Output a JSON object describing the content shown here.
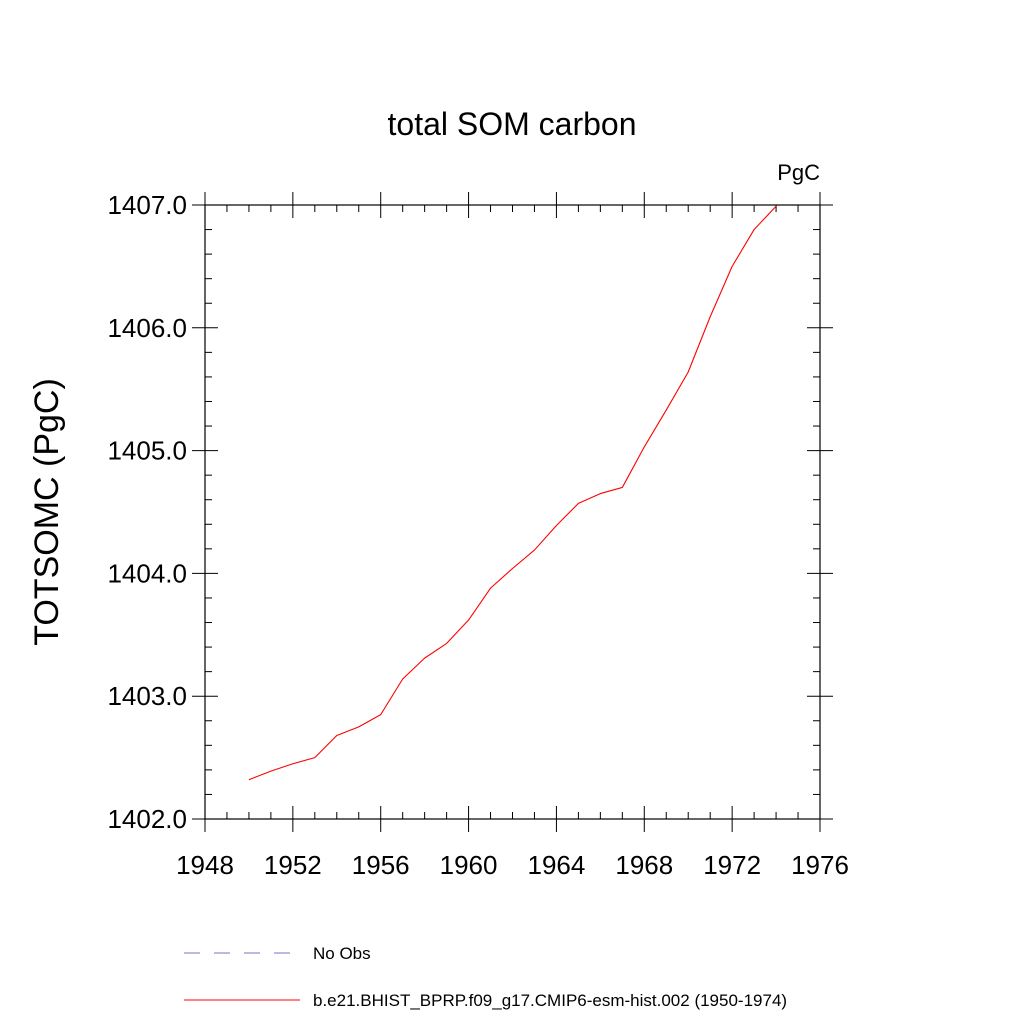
{
  "chart_data": {
    "type": "line",
    "title": "total SOM carbon",
    "units_label": "PgC",
    "xlabel": "",
    "ylabel": "TOTSOMC  (PgC)",
    "xlim": [
      1948,
      1976
    ],
    "ylim": [
      1402.0,
      1407.0
    ],
    "xticks": [
      1948,
      1952,
      1956,
      1960,
      1964,
      1968,
      1972,
      1976
    ],
    "xtick_labels": [
      "1948",
      "1952",
      "1956",
      "1960",
      "1964",
      "1968",
      "1972",
      "1976"
    ],
    "yticks": [
      1402.0,
      1403.0,
      1404.0,
      1405.0,
      1406.0,
      1407.0
    ],
    "ytick_labels": [
      "1402.0",
      "1403.0",
      "1404.0",
      "1405.0",
      "1406.0",
      "1407.0"
    ],
    "x_minor_step": 1,
    "y_minor_step": 0.2,
    "series": [
      {
        "name": "b.e21.BHIST_BPRP.f09_g17.CMIP6-esm-hist.002 (1950-1974)",
        "color": "#ff0000",
        "style": "solid",
        "x": [
          1950,
          1951,
          1952,
          1953,
          1954,
          1955,
          1956,
          1957,
          1958,
          1959,
          1960,
          1961,
          1962,
          1963,
          1964,
          1965,
          1966,
          1967,
          1968,
          1969,
          1970,
          1971,
          1972,
          1973,
          1974
        ],
        "y": [
          1402.32,
          1402.39,
          1402.45,
          1402.5,
          1402.68,
          1402.75,
          1402.85,
          1403.14,
          1403.31,
          1403.43,
          1403.62,
          1403.88,
          1404.04,
          1404.19,
          1404.39,
          1404.57,
          1404.65,
          1404.7,
          1405.03,
          1405.33,
          1405.64,
          1406.09,
          1406.5,
          1406.8,
          1406.99
        ]
      }
    ],
    "legend": [
      {
        "label": "No Obs",
        "color": "#7a70c8",
        "style": "dashed"
      },
      {
        "label": "b.e21.BHIST_BPRP.f09_g17.CMIP6-esm-hist.002 (1950-1974)",
        "color": "#ff0000",
        "style": "solid"
      }
    ],
    "legend_position": "bottom",
    "grid": false
  }
}
